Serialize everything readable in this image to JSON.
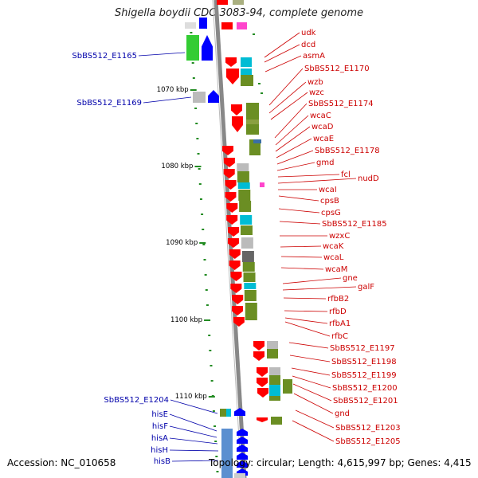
{
  "header": {
    "title": "Shigella boydii CDC 3083-94, complete genome"
  },
  "footer": {
    "accession": "Accession: NC_010658",
    "summary": "Topology: circular; Length: 4,615,997 bp; Genes: 4,415"
  },
  "kbp_ticks": [
    "1070 kbp",
    "1080 kbp",
    "1090 kbp",
    "1100 kbp",
    "1110 kbp"
  ],
  "right_labels": [
    "udk",
    "dcd",
    "asmA",
    "SbBS512_E1170",
    "wzb",
    "wzc",
    "SbBS512_E1174",
    "wcaC",
    "wcaD",
    "wcaE",
    "SbBS512_E1178",
    "gmd",
    "fcl",
    "nudD",
    "wcaI",
    "cpsB",
    "cpsG",
    "SbBS512_E1185",
    "wzxC",
    "wcaK",
    "wcaL",
    "wcaM",
    "gne",
    "galF",
    "rfbB2",
    "rfbD",
    "rfbA1",
    "rfbC",
    "SbBS512_E1197",
    "SbBS512_E1198",
    "SbBS512_E1199",
    "SbBS512_E1200",
    "SbBS512_E1201",
    "gnd",
    "SbBS512_E1203",
    "SbBS512_E1205"
  ],
  "left_labels": [
    "SbBS512_E1165",
    "SbBS512_E1169",
    "SbBS512_E1204",
    "hisE",
    "hisF",
    "hisA",
    "hisH",
    "hisB"
  ],
  "colors": {
    "forward_gene": "#ff0000",
    "reverse_gene": "#0000ff",
    "right_label": "#cc0000",
    "left_label": "#0000aa",
    "backbone": "#888888",
    "tick": "#228B22",
    "olive": "#6b8e23",
    "cyan": "#00bcd4",
    "green": "#33cc33",
    "magenta": "#ff44cc"
  }
}
